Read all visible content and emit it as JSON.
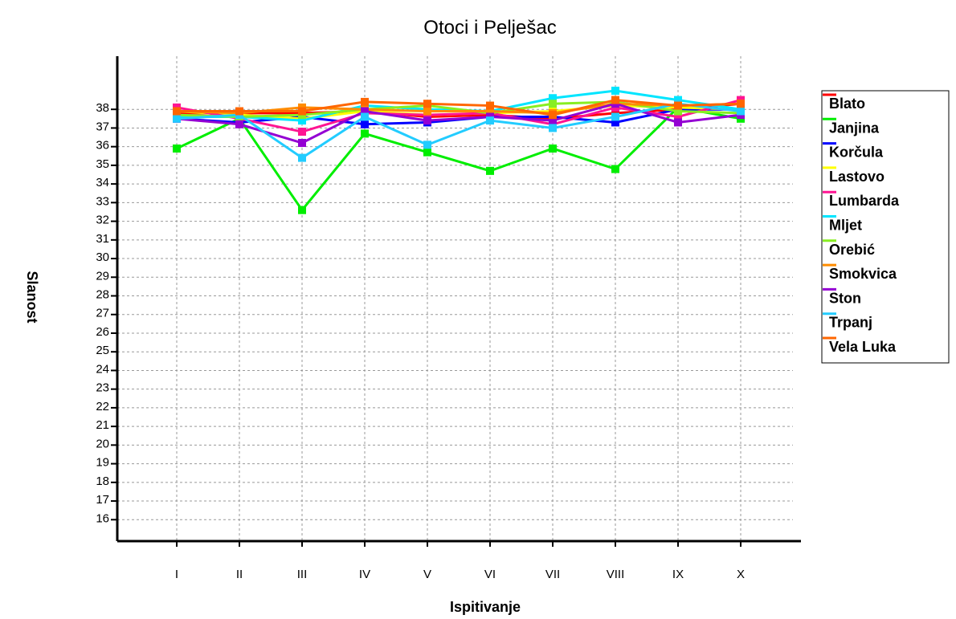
{
  "chart_data": {
    "type": "line",
    "title": "Otoci i Pelješac",
    "xlabel": "Ispitivanje",
    "ylabel": "Slanost",
    "categories": [
      "I",
      "II",
      "III",
      "IV",
      "V",
      "VI",
      "VII",
      "VIII",
      "IX",
      "X"
    ],
    "y_ticks": [
      16,
      17,
      18,
      19,
      20,
      21,
      22,
      23,
      24,
      25,
      26,
      27,
      28,
      29,
      30,
      31,
      32,
      33,
      34,
      35,
      36,
      37,
      38
    ],
    "y_tick_labels": [
      "16",
      "17",
      "18",
      "19",
      "20",
      "21",
      "22",
      "23",
      "24",
      "25",
      "26",
      "27",
      "28",
      "29",
      "30",
      "31",
      "32",
      "33",
      "34",
      "35",
      "36",
      "37",
      "38"
    ],
    "ylim": [
      14.85,
      40.85
    ],
    "grid": true,
    "legend_position": "right",
    "series": [
      {
        "name": "Blato",
        "color": "#ff0000",
        "values": [
          37.8,
          37.8,
          37.8,
          37.9,
          37.6,
          37.7,
          37.5,
          37.8,
          38.0,
          38.3
        ]
      },
      {
        "name": "Janjina",
        "color": "#00ee00",
        "values": [
          35.9,
          37.5,
          32.6,
          36.7,
          35.7,
          34.7,
          35.9,
          34.8,
          38.1,
          37.5
        ]
      },
      {
        "name": "Korčula",
        "color": "#0000ff",
        "values": [
          37.5,
          37.3,
          37.6,
          37.2,
          37.3,
          37.6,
          37.6,
          37.3,
          38.0,
          38.0
        ]
      },
      {
        "name": "Lastovo",
        "color": "#ffff00",
        "values": [
          37.9,
          37.7,
          37.5,
          37.9,
          37.7,
          37.8,
          37.9,
          38.2,
          38.1,
          38.0
        ]
      },
      {
        "name": "Lumbarda",
        "color": "#ff1493",
        "values": [
          38.1,
          37.5,
          36.8,
          37.8,
          37.7,
          37.8,
          37.2,
          38.1,
          37.6,
          38.5
        ]
      },
      {
        "name": "Mljet",
        "color": "#00e5ff",
        "values": [
          37.6,
          37.6,
          37.4,
          38.2,
          38.0,
          37.9,
          38.6,
          39.0,
          38.5,
          38.0
        ]
      },
      {
        "name": "Orebić",
        "color": "#88ee22",
        "values": [
          37.7,
          37.6,
          37.7,
          38.0,
          38.2,
          37.8,
          38.3,
          38.4,
          37.9,
          37.8
        ]
      },
      {
        "name": "Smokvica",
        "color": "#ff8c00",
        "values": [
          37.9,
          37.8,
          38.1,
          38.0,
          37.9,
          37.9,
          37.8,
          38.3,
          38.2,
          38.3
        ]
      },
      {
        "name": "Ston",
        "color": "#9400d3",
        "values": [
          37.5,
          37.2,
          36.2,
          37.9,
          37.4,
          37.6,
          37.4,
          38.3,
          37.3,
          37.7
        ]
      },
      {
        "name": "Trpanj",
        "color": "#22ccff",
        "values": [
          37.5,
          37.7,
          35.4,
          37.6,
          36.1,
          37.4,
          37.0,
          37.6,
          38.3,
          37.9
        ]
      },
      {
        "name": "Vela Luka",
        "color": "#ff6600",
        "values": [
          37.9,
          37.9,
          37.9,
          38.4,
          38.3,
          38.2,
          37.7,
          38.5,
          38.2,
          38.3
        ]
      }
    ]
  }
}
